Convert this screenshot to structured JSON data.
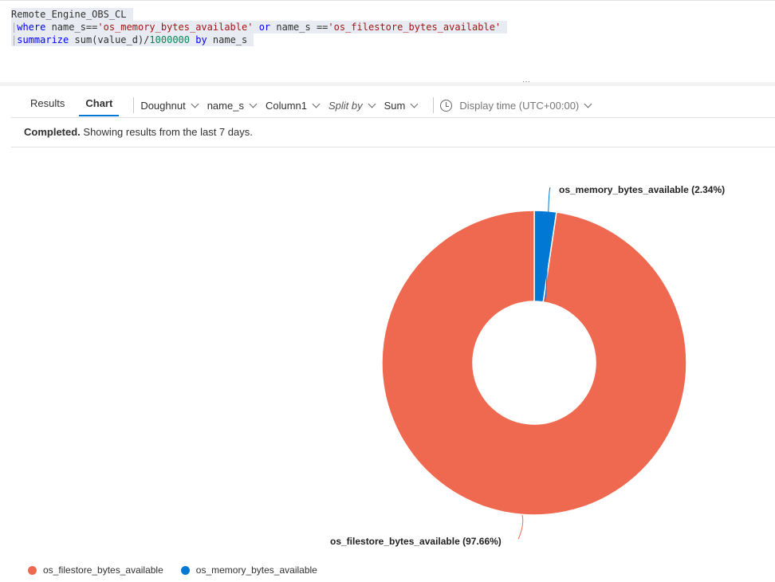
{
  "query": {
    "line1": "Remote_Engine_OBS_CL",
    "line2": {
      "kw1": "where",
      "t1": " name_s==",
      "s1": "'os_memory_bytes_available'",
      "kw2": " or",
      "t2": " name_s ==",
      "s2": "'os_filestore_bytes_available'"
    },
    "line3": {
      "kw1": "summarize",
      "t1": " sum(value_d)/",
      "n1": "1000000",
      "kw2": " by",
      "t2": " name_s"
    }
  },
  "tabs": [
    {
      "label": "Results",
      "active": false
    },
    {
      "label": "Chart",
      "active": true
    }
  ],
  "chart_options": {
    "type": "Doughnut",
    "x": "name_s",
    "y": "Column1",
    "split": "Split by",
    "agg": "Sum",
    "time": "Display time (UTC+00:00)"
  },
  "status": {
    "bold": "Completed.",
    "text": " Showing results from the last 7 days."
  },
  "chart_data": {
    "type": "pie",
    "donut": true,
    "slices": [
      {
        "name": "os_memory_bytes_available",
        "percent": 2.34,
        "label": "os_memory_bytes_available (2.34%)",
        "color": "#0078d4"
      },
      {
        "name": "os_filestore_bytes_available",
        "percent": 97.66,
        "label": "os_filestore_bytes_available (97.66%)",
        "color": "#ef6950"
      }
    ],
    "legend": [
      "os_filestore_bytes_available",
      "os_memory_bytes_available"
    ],
    "legend_position": "bottom-left"
  }
}
